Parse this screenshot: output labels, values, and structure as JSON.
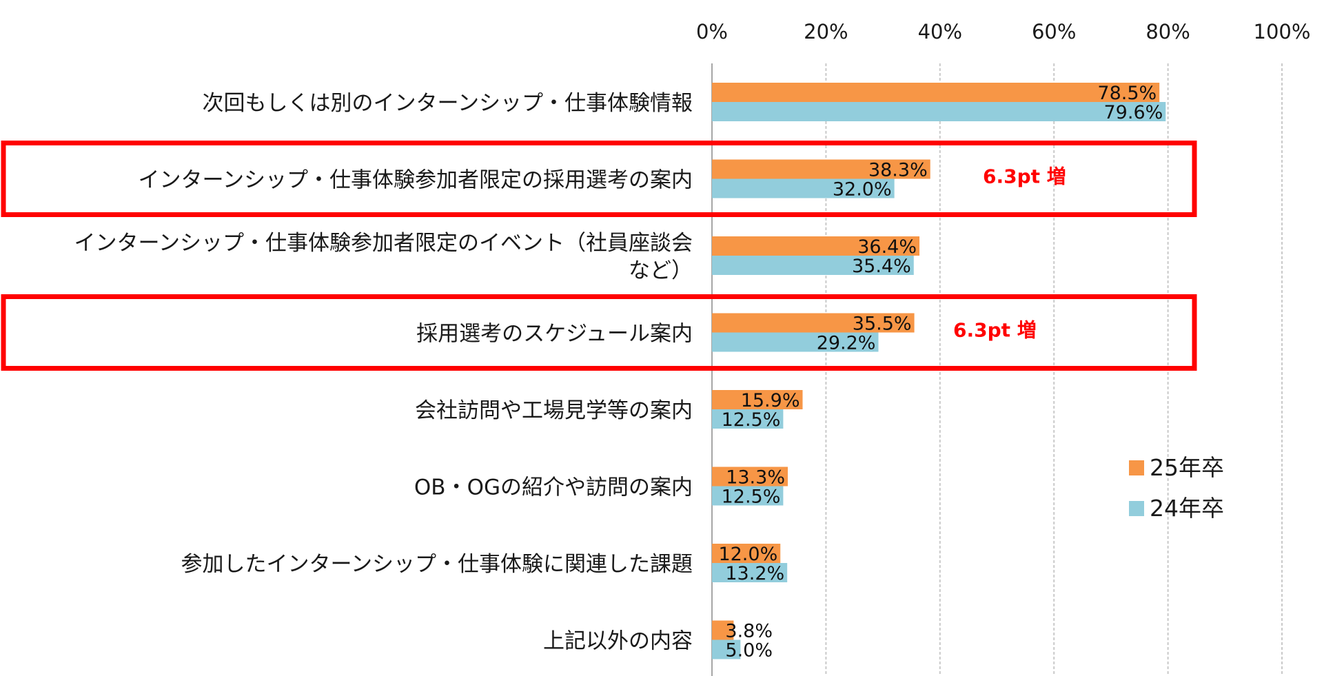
{
  "chart_data": {
    "type": "bar",
    "orientation": "horizontal",
    "categories": [
      [
        "次回もしくは別のインターンシップ・仕事体験情報"
      ],
      [
        "インターンシップ・仕事体験参加者限定の採用選考の案内"
      ],
      [
        "インターンシップ・仕事体験参加者限定のイベント（社員座談会",
        "など）"
      ],
      [
        "採用選考のスケジュール案内"
      ],
      [
        "会社訪問や工場見学等の案内"
      ],
      [
        "OB・OGの紹介や訪問の案内"
      ],
      [
        "参加したインターンシップ・仕事体験に関連した課題"
      ],
      [
        "上記以外の内容"
      ]
    ],
    "series": [
      {
        "name": "25年卒",
        "color": "#f79646",
        "values": [
          78.5,
          38.3,
          36.4,
          35.5,
          15.9,
          13.3,
          12.0,
          3.8
        ],
        "labels": [
          "78.5%",
          "38.3%",
          "36.4%",
          "35.5%",
          "15.9%",
          "13.3%",
          "12.0%",
          "3.8%"
        ]
      },
      {
        "name": "24年卒",
        "color": "#92cddc",
        "values": [
          79.6,
          32.0,
          35.4,
          29.2,
          12.5,
          12.5,
          13.2,
          5.0
        ],
        "labels": [
          "79.6%",
          "32.0%",
          "35.4%",
          "29.2%",
          "12.5%",
          "12.5%",
          "13.2%",
          "5.0%"
        ]
      }
    ],
    "xlim": [
      0,
      100
    ],
    "xticks": [
      "0%",
      "20%",
      "40%",
      "60%",
      "80%",
      "100%"
    ],
    "grid": true,
    "legend_position": "right",
    "highlights": [
      {
        "category_index": 1,
        "text": "6.3pt 増",
        "color": "#ff0000"
      },
      {
        "category_index": 3,
        "text": "6.3pt 増",
        "color": "#ff0000"
      }
    ]
  }
}
